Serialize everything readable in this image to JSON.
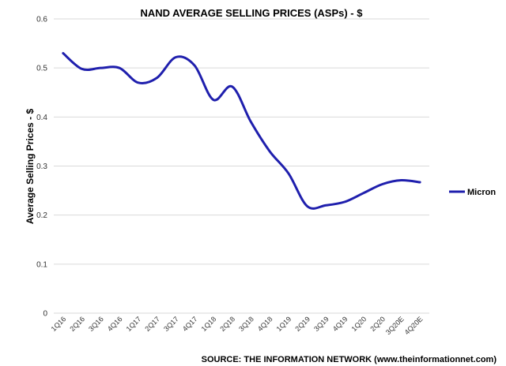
{
  "chart_data": {
    "type": "line",
    "title": "NAND AVERAGE SELLING PRICES (ASPs) - $",
    "xlabel": "",
    "ylabel": "Average Selling Prices - $",
    "ylim": [
      0,
      0.6
    ],
    "yticks": [
      "0",
      "0.1",
      "0.2",
      "0.3",
      "0.4",
      "0.5",
      "0.6"
    ],
    "grid": true,
    "legend_position": "right",
    "categories": [
      "1Q16",
      "2Q16",
      "3Q16",
      "4Q16",
      "1Q17",
      "2Q17",
      "3Q17",
      "4Q17",
      "1Q18",
      "2Q18",
      "3Q18",
      "4Q18",
      "1Q19",
      "2Q19",
      "3Q19",
      "4Q19",
      "1Q20",
      "2Q20",
      "3Q20E",
      "4Q20E"
    ],
    "series": [
      {
        "name": "Micron",
        "color": "#1f1fad",
        "values": [
          0.53,
          0.498,
          0.5,
          0.5,
          0.47,
          0.48,
          0.522,
          0.505,
          0.435,
          0.462,
          0.39,
          0.33,
          0.285,
          0.218,
          0.22,
          0.227,
          0.245,
          0.263,
          0.271,
          0.267
        ]
      }
    ]
  },
  "source_text": "SOURCE: THE INFORMATION NETWORK (www.theinformationnet.com)"
}
